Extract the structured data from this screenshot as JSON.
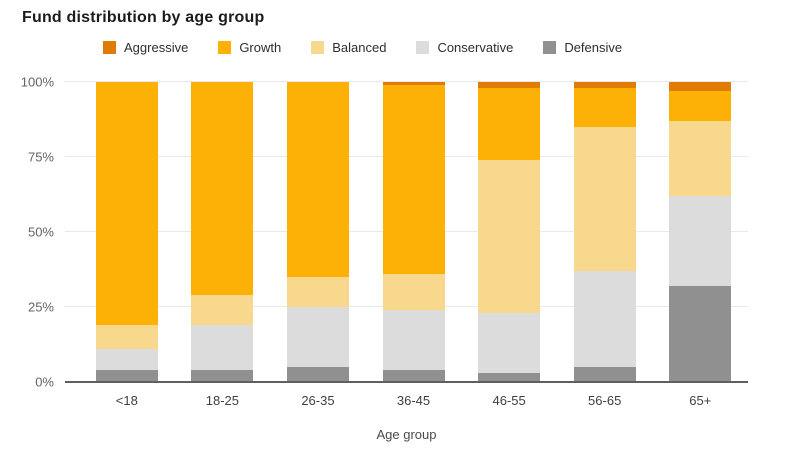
{
  "title": "Fund distribution by age group",
  "chart_data": {
    "type": "bar",
    "variant": "stacked-100-percent",
    "title": "Fund distribution by age group",
    "xlabel": "Age group",
    "ylabel": "",
    "ylim": [
      0,
      100
    ],
    "grid": true,
    "legend_position": "top",
    "categories": [
      "<18",
      "18-25",
      "26-35",
      "36-45",
      "46-55",
      "56-65",
      "65+"
    ],
    "yticks": [
      {
        "value": 0,
        "label": "0%"
      },
      {
        "value": 25,
        "label": "25%"
      },
      {
        "value": 50,
        "label": "50%"
      },
      {
        "value": 75,
        "label": "75%"
      },
      {
        "value": 100,
        "label": "100%"
      }
    ],
    "series": [
      {
        "name": "Aggressive",
        "color": "#E07B05",
        "values": [
          0,
          0,
          0,
          1,
          2,
          2,
          3
        ]
      },
      {
        "name": "Growth",
        "color": "#FDB005",
        "values": [
          81,
          71,
          65,
          63,
          24,
          13,
          10
        ]
      },
      {
        "name": "Balanced",
        "color": "#F7D88C",
        "values": [
          8,
          10,
          10,
          12,
          51,
          48,
          25
        ]
      },
      {
        "name": "Conservative",
        "color": "#DCDCDC",
        "values": [
          7,
          15,
          20,
          20,
          20,
          32,
          30
        ]
      },
      {
        "name": "Defensive",
        "color": "#909090",
        "values": [
          4,
          4,
          5,
          4,
          3,
          5,
          32
        ]
      }
    ]
  }
}
